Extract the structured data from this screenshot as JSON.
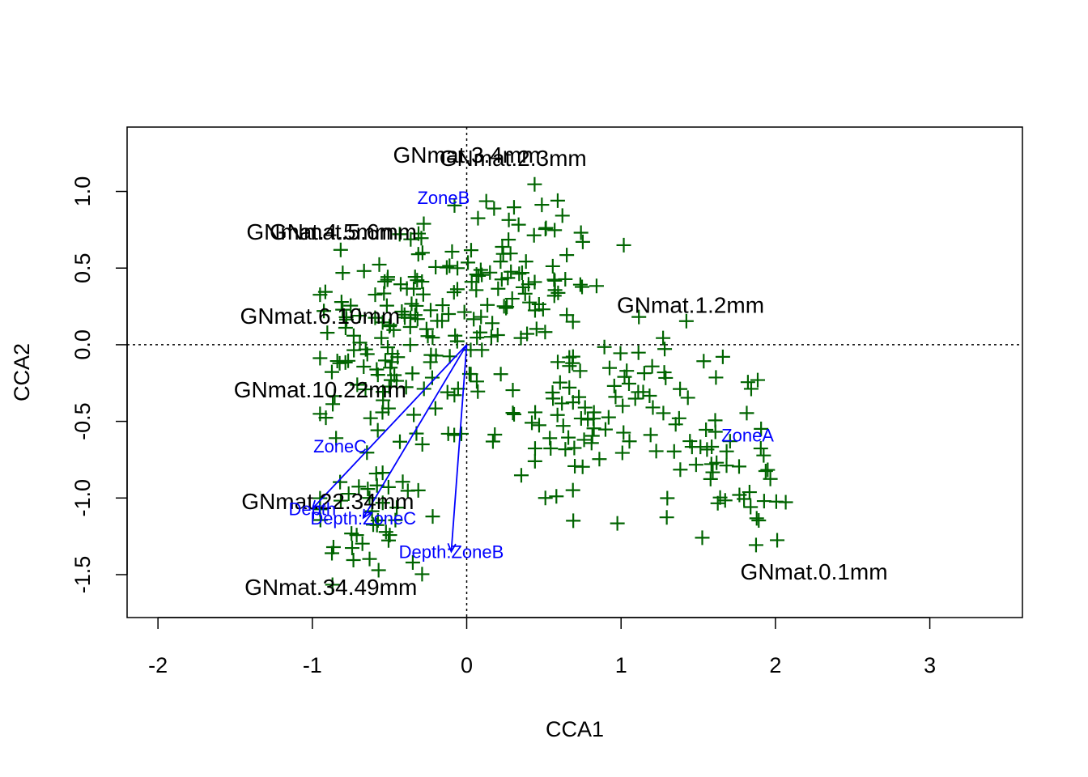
{
  "chart_data": {
    "type": "scatter",
    "xlabel": "CCA1",
    "ylabel": "CCA2",
    "xlim": [
      -2.2,
      3.6
    ],
    "ylim": [
      -1.78,
      1.42
    ],
    "xticks": [
      -2,
      -1,
      0,
      1,
      2,
      3
    ],
    "yticks": [
      -1.5,
      -1.0,
      -0.5,
      0.0,
      0.5,
      1.0
    ],
    "xtick_labels": [
      "-2",
      "-1",
      "0",
      "1",
      "2",
      "3"
    ],
    "ytick_labels": [
      "-1.5",
      "-1.0",
      "-0.5",
      "0.0",
      "0.5",
      "1.0"
    ],
    "zero_lines": true,
    "colors": {
      "sites": "#006400",
      "species": "#000000",
      "environment": "#0000ff"
    },
    "species": [
      {
        "label": "GNmat.3.4mm",
        "x": 0.0,
        "y": 1.24
      },
      {
        "label": "GNmat.2.3mm",
        "x": 0.3,
        "y": 1.22
      },
      {
        "label": "GNmat.4.5mm",
        "x": -0.95,
        "y": 0.74
      },
      {
        "label": "GNmat.5.6mm",
        "x": -0.8,
        "y": 0.74
      },
      {
        "label": "GNmat.1.2mm",
        "x": 1.45,
        "y": 0.26
      },
      {
        "label": "GNmat.6.10mm",
        "x": -0.95,
        "y": 0.19
      },
      {
        "label": "GNmat.10.22mm",
        "x": -0.95,
        "y": -0.29
      },
      {
        "label": "GNmat.22.34mm",
        "x": -0.9,
        "y": -1.02
      },
      {
        "label": "GNmat.34.49mm",
        "x": -0.88,
        "y": -1.58
      },
      {
        "label": "GNmat.0.1mm",
        "x": 2.25,
        "y": -1.48
      }
    ],
    "environment": [
      {
        "label": "ZoneB",
        "x": -0.15,
        "y": 0.96,
        "arrow": false
      },
      {
        "label": "ZoneA",
        "x": 1.82,
        "y": -0.59,
        "arrow": false
      },
      {
        "label": "ZoneC",
        "x": -0.82,
        "y": -0.66,
        "arrow": false
      },
      {
        "label": "Depth",
        "x": -1.0,
        "y": -1.07,
        "arrow": true
      },
      {
        "label": "Depth:ZoneC",
        "x": -0.67,
        "y": -1.13,
        "arrow": true
      },
      {
        "label": "Depth:ZoneB",
        "x": -0.1,
        "y": -1.35,
        "arrow": true
      }
    ],
    "site_count": 380
  }
}
